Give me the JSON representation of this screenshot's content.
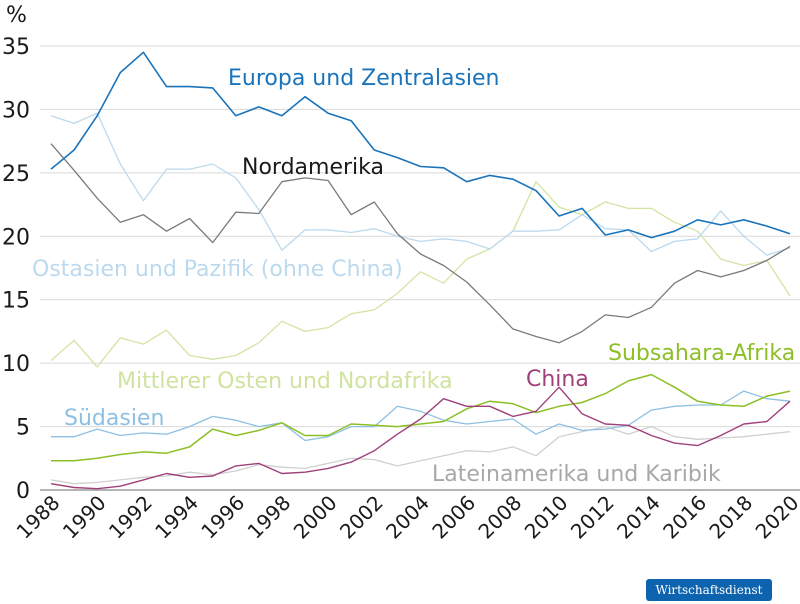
{
  "chart_data": {
    "type": "line",
    "ylabel": "%",
    "ylim": [
      0,
      35
    ],
    "yticks": [
      0,
      5,
      10,
      15,
      20,
      25,
      30,
      35
    ],
    "xlim": [
      1988,
      2020
    ],
    "xticks": [
      "1988",
      "1990",
      "1992",
      "1994",
      "1996",
      "1998",
      "2000",
      "2002",
      "2004",
      "2006",
      "2008",
      "2010",
      "2012",
      "2014",
      "2016",
      "2018",
      "2020"
    ],
    "grid": true,
    "x": [
      1988,
      1989,
      1990,
      1991,
      1992,
      1993,
      1994,
      1995,
      1996,
      1997,
      1998,
      1999,
      2000,
      2001,
      2002,
      2003,
      2004,
      2005,
      2006,
      2007,
      2008,
      2009,
      2010,
      2011,
      2012,
      2013,
      2014,
      2015,
      2016,
      2017,
      2018,
      2019,
      2020
    ],
    "series": [
      {
        "name": "Europa und Zentralasien",
        "color": "#1a74bb",
        "width": 1.6,
        "label_color": "#1a74bb",
        "values": [
          25.3,
          26.8,
          29.5,
          32.9,
          34.5,
          31.8,
          31.8,
          31.7,
          29.5,
          30.2,
          29.5,
          31.0,
          29.7,
          29.1,
          26.8,
          26.2,
          25.5,
          25.4,
          24.3,
          24.8,
          24.5,
          23.6,
          21.6,
          22.2,
          20.1,
          20.5,
          19.9,
          20.4,
          21.3,
          20.9,
          21.3,
          20.8,
          20.2
        ]
      },
      {
        "name": "Nordamerika",
        "color": "#7a7a7a",
        "width": 1.3,
        "label_color": "#1a1a1a",
        "values": [
          27.3,
          25.2,
          23.0,
          21.1,
          21.7,
          20.4,
          21.4,
          19.5,
          21.9,
          21.8,
          24.3,
          24.6,
          24.4,
          21.7,
          22.7,
          20.2,
          18.6,
          17.7,
          16.4,
          14.6,
          12.7,
          12.1,
          11.6,
          12.5,
          13.8,
          13.6,
          14.4,
          16.3,
          17.3,
          16.8,
          17.3,
          18.1,
          19.2
        ]
      },
      {
        "name": "Ostasien und Pazifik (ohne China)",
        "color": "#bcd9ee",
        "width": 1.3,
        "label_color": "#bcd9ee",
        "values": [
          29.5,
          28.9,
          29.7,
          25.7,
          22.8,
          25.3,
          25.3,
          25.7,
          24.6,
          22.1,
          18.9,
          20.5,
          20.5,
          20.3,
          20.6,
          20.0,
          19.6,
          19.8,
          19.6,
          19.0,
          20.4,
          20.4,
          20.5,
          21.7,
          20.6,
          20.5,
          18.8,
          19.6,
          19.8,
          22.0,
          20.0,
          18.5,
          19.1
        ]
      },
      {
        "name": "Mittlerer Osten und Nordafrika",
        "color": "#d2e5a3",
        "width": 1.3,
        "label_color": "#cfe3a0",
        "values": [
          10.2,
          11.8,
          9.7,
          12.0,
          11.5,
          12.6,
          10.6,
          10.3,
          10.6,
          11.6,
          13.3,
          12.5,
          12.8,
          13.9,
          14.2,
          15.5,
          17.2,
          16.3,
          18.2,
          19.0,
          20.4,
          24.3,
          22.3,
          21.7,
          22.7,
          22.2,
          22.2,
          21.1,
          20.4,
          18.2,
          17.7,
          18.1,
          15.3
        ]
      },
      {
        "name": "Subsahara-Afrika",
        "color": "#8cbf26",
        "width": 1.5,
        "label_color": "#8cbf26",
        "values": [
          2.3,
          2.3,
          2.5,
          2.8,
          3.0,
          2.9,
          3.4,
          4.8,
          4.3,
          4.7,
          5.3,
          4.3,
          4.3,
          5.2,
          5.1,
          5.0,
          5.2,
          5.4,
          6.4,
          7.0,
          6.8,
          6.1,
          6.6,
          6.9,
          7.6,
          8.6,
          9.1,
          8.1,
          7.0,
          6.7,
          6.6,
          7.4,
          7.8
        ]
      },
      {
        "name": "Südasien",
        "color": "#8ec0e4",
        "width": 1.3,
        "label_color": "#8ec0e4",
        "values": [
          4.2,
          4.2,
          4.8,
          4.3,
          4.5,
          4.4,
          5.0,
          5.8,
          5.5,
          5.0,
          5.3,
          3.9,
          4.2,
          5.0,
          5.0,
          6.6,
          6.2,
          5.5,
          5.2,
          5.4,
          5.6,
          4.4,
          5.2,
          4.7,
          4.8,
          5.1,
          6.3,
          6.6,
          6.7,
          6.7,
          7.8,
          7.2,
          7.0
        ]
      },
      {
        "name": "China",
        "color": "#a0407a",
        "width": 1.4,
        "label_color": "#a0407a",
        "values": [
          0.5,
          0.2,
          0.1,
          0.3,
          0.8,
          1.3,
          1.0,
          1.1,
          1.9,
          2.1,
          1.3,
          1.4,
          1.7,
          2.2,
          3.1,
          4.4,
          5.6,
          7.2,
          6.6,
          6.6,
          5.8,
          6.2,
          8.1,
          6.0,
          5.2,
          5.1,
          4.3,
          3.7,
          3.5,
          4.3,
          5.2,
          5.4,
          7.0
        ]
      },
      {
        "name": "Lateinamerika und Karibik",
        "color": "#d0d0d0",
        "width": 1.3,
        "label_color": "#a8a8a8",
        "values": [
          0.8,
          0.5,
          0.6,
          0.8,
          1.0,
          1.1,
          1.4,
          1.2,
          1.5,
          2.0,
          1.8,
          1.7,
          2.1,
          2.5,
          2.4,
          1.9,
          2.3,
          2.7,
          3.1,
          3.0,
          3.4,
          2.7,
          4.2,
          4.6,
          5.0,
          4.4,
          5.0,
          4.2,
          4.0,
          4.1,
          4.2,
          4.4,
          4.6
        ]
      }
    ]
  },
  "logo": "Wirtschaftsdienst"
}
